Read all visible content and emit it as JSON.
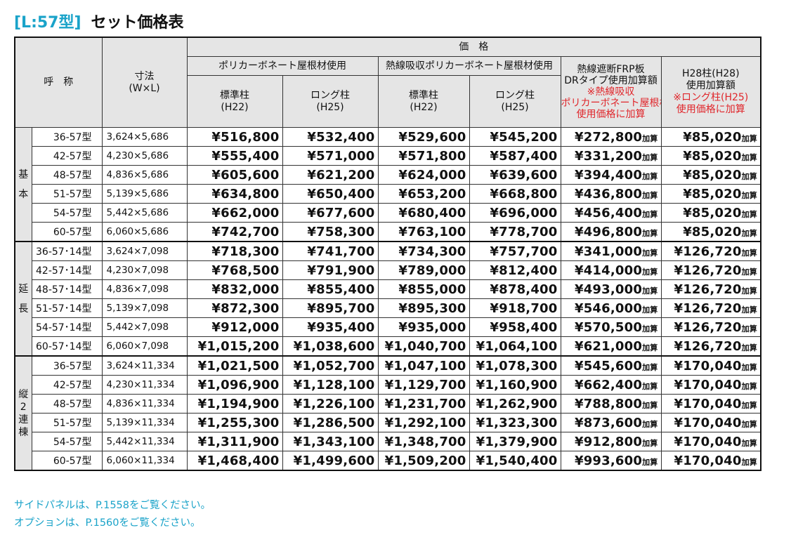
{
  "title": {
    "tag": "[L:57型]",
    "name": "セット価格表"
  },
  "header": {
    "name_col": "呼　称",
    "size_col": [
      "寸法",
      "(W×L)"
    ],
    "price_group": "価　格",
    "polycarbonate": "ポリカーボネート屋根材使用",
    "heat_polycarbonate": "熱線吸収ポリカーボネート屋根材使用",
    "frp": [
      "熱線遮断FRP板",
      "DRタイプ使用加算額"
    ],
    "frp_note": [
      "※熱線吸収",
      "ポリカーボネート屋根材",
      "使用価格に加算"
    ],
    "h28": [
      "H28柱(H28)",
      "使用加算額"
    ],
    "h28_note": [
      "※ロング柱(H25)",
      "使用価格に加算"
    ],
    "standard": [
      "標準柱",
      "(H22)"
    ],
    "long": [
      "ロング柱",
      "(H25)"
    ]
  },
  "suffix": "加算",
  "groups": [
    {
      "label": "基本",
      "rows": [
        {
          "model": "36-57型",
          "size": "3,624×5,686",
          "prices": [
            "¥516,800",
            "¥532,400",
            "¥529,600",
            "¥545,200",
            "¥272,800",
            "¥85,020"
          ]
        },
        {
          "model": "42-57型",
          "size": "4,230×5,686",
          "prices": [
            "¥555,400",
            "¥571,000",
            "¥571,800",
            "¥587,400",
            "¥331,200",
            "¥85,020"
          ]
        },
        {
          "model": "48-57型",
          "size": "4,836×5,686",
          "prices": [
            "¥605,600",
            "¥621,200",
            "¥624,000",
            "¥639,600",
            "¥394,400",
            "¥85,020"
          ]
        },
        {
          "model": "51-57型",
          "size": "5,139×5,686",
          "prices": [
            "¥634,800",
            "¥650,400",
            "¥653,200",
            "¥668,800",
            "¥436,800",
            "¥85,020"
          ]
        },
        {
          "model": "54-57型",
          "size": "5,442×5,686",
          "prices": [
            "¥662,000",
            "¥677,600",
            "¥680,400",
            "¥696,000",
            "¥456,400",
            "¥85,020"
          ]
        },
        {
          "model": "60-57型",
          "size": "6,060×5,686",
          "prices": [
            "¥742,700",
            "¥758,300",
            "¥763,100",
            "¥778,700",
            "¥496,800",
            "¥85,020"
          ]
        }
      ]
    },
    {
      "label": "延長",
      "rows": [
        {
          "model": "36-57･14型",
          "size": "3,624×7,098",
          "prices": [
            "¥718,300",
            "¥741,700",
            "¥734,300",
            "¥757,700",
            "¥341,000",
            "¥126,720"
          ]
        },
        {
          "model": "42-57･14型",
          "size": "4,230×7,098",
          "prices": [
            "¥768,500",
            "¥791,900",
            "¥789,000",
            "¥812,400",
            "¥414,000",
            "¥126,720"
          ]
        },
        {
          "model": "48-57･14型",
          "size": "4,836×7,098",
          "prices": [
            "¥832,000",
            "¥855,400",
            "¥855,000",
            "¥878,400",
            "¥493,000",
            "¥126,720"
          ]
        },
        {
          "model": "51-57･14型",
          "size": "5,139×7,098",
          "prices": [
            "¥872,300",
            "¥895,700",
            "¥895,300",
            "¥918,700",
            "¥546,000",
            "¥126,720"
          ]
        },
        {
          "model": "54-57･14型",
          "size": "5,442×7,098",
          "prices": [
            "¥912,000",
            "¥935,400",
            "¥935,000",
            "¥958,400",
            "¥570,500",
            "¥126,720"
          ]
        },
        {
          "model": "60-57･14型",
          "size": "6,060×7,098",
          "prices": [
            "¥1,015,200",
            "¥1,038,600",
            "¥1,040,700",
            "¥1,064,100",
            "¥621,000",
            "¥126,720"
          ]
        }
      ]
    },
    {
      "label": "縦2連棟",
      "rows": [
        {
          "model": "36-57型",
          "size": "3,624×11,334",
          "prices": [
            "¥1,021,500",
            "¥1,052,700",
            "¥1,047,100",
            "¥1,078,300",
            "¥545,600",
            "¥170,040"
          ]
        },
        {
          "model": "42-57型",
          "size": "4,230×11,334",
          "prices": [
            "¥1,096,900",
            "¥1,128,100",
            "¥1,129,700",
            "¥1,160,900",
            "¥662,400",
            "¥170,040"
          ]
        },
        {
          "model": "48-57型",
          "size": "4,836×11,334",
          "prices": [
            "¥1,194,900",
            "¥1,226,100",
            "¥1,231,700",
            "¥1,262,900",
            "¥788,800",
            "¥170,040"
          ]
        },
        {
          "model": "51-57型",
          "size": "5,139×11,334",
          "prices": [
            "¥1,255,300",
            "¥1,286,500",
            "¥1,292,100",
            "¥1,323,300",
            "¥873,600",
            "¥170,040"
          ]
        },
        {
          "model": "54-57型",
          "size": "5,442×11,334",
          "prices": [
            "¥1,311,900",
            "¥1,343,100",
            "¥1,348,700",
            "¥1,379,900",
            "¥912,800",
            "¥170,040"
          ]
        },
        {
          "model": "60-57型",
          "size": "6,060×11,334",
          "prices": [
            "¥1,468,400",
            "¥1,499,600",
            "¥1,509,200",
            "¥1,540,400",
            "¥993,600",
            "¥170,040"
          ]
        }
      ]
    }
  ],
  "notes": [
    "サイドパネルは、P.1558をご覧ください。",
    "オプションは、P.1560をご覧ください。"
  ],
  "colors": {
    "accent": "#1aa3c9",
    "note_red": "#e0262b",
    "header_bg": "#e5e5e5"
  }
}
